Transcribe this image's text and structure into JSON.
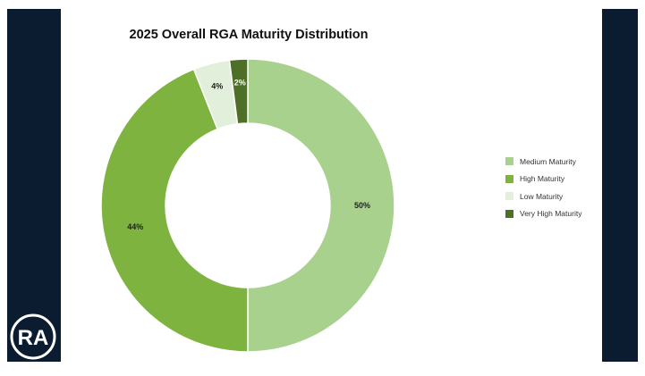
{
  "chart_data": {
    "type": "pie",
    "title": "2025 Overall RGA Maturity Distribution",
    "categories": [
      "Medium Maturity",
      "High Maturity",
      "Low Maturity",
      "Very High Maturity"
    ],
    "values": [
      50,
      44,
      4,
      2
    ],
    "value_labels": [
      "50%",
      "44%",
      "4%",
      "2%"
    ],
    "colors": [
      "#a9d18e",
      "#7eb33f",
      "#e2efda",
      "#4e6f26"
    ],
    "legend_placement": "right",
    "grid": false
  },
  "logo": {
    "letters": "RA",
    "icon": "ra-logo-icon"
  }
}
